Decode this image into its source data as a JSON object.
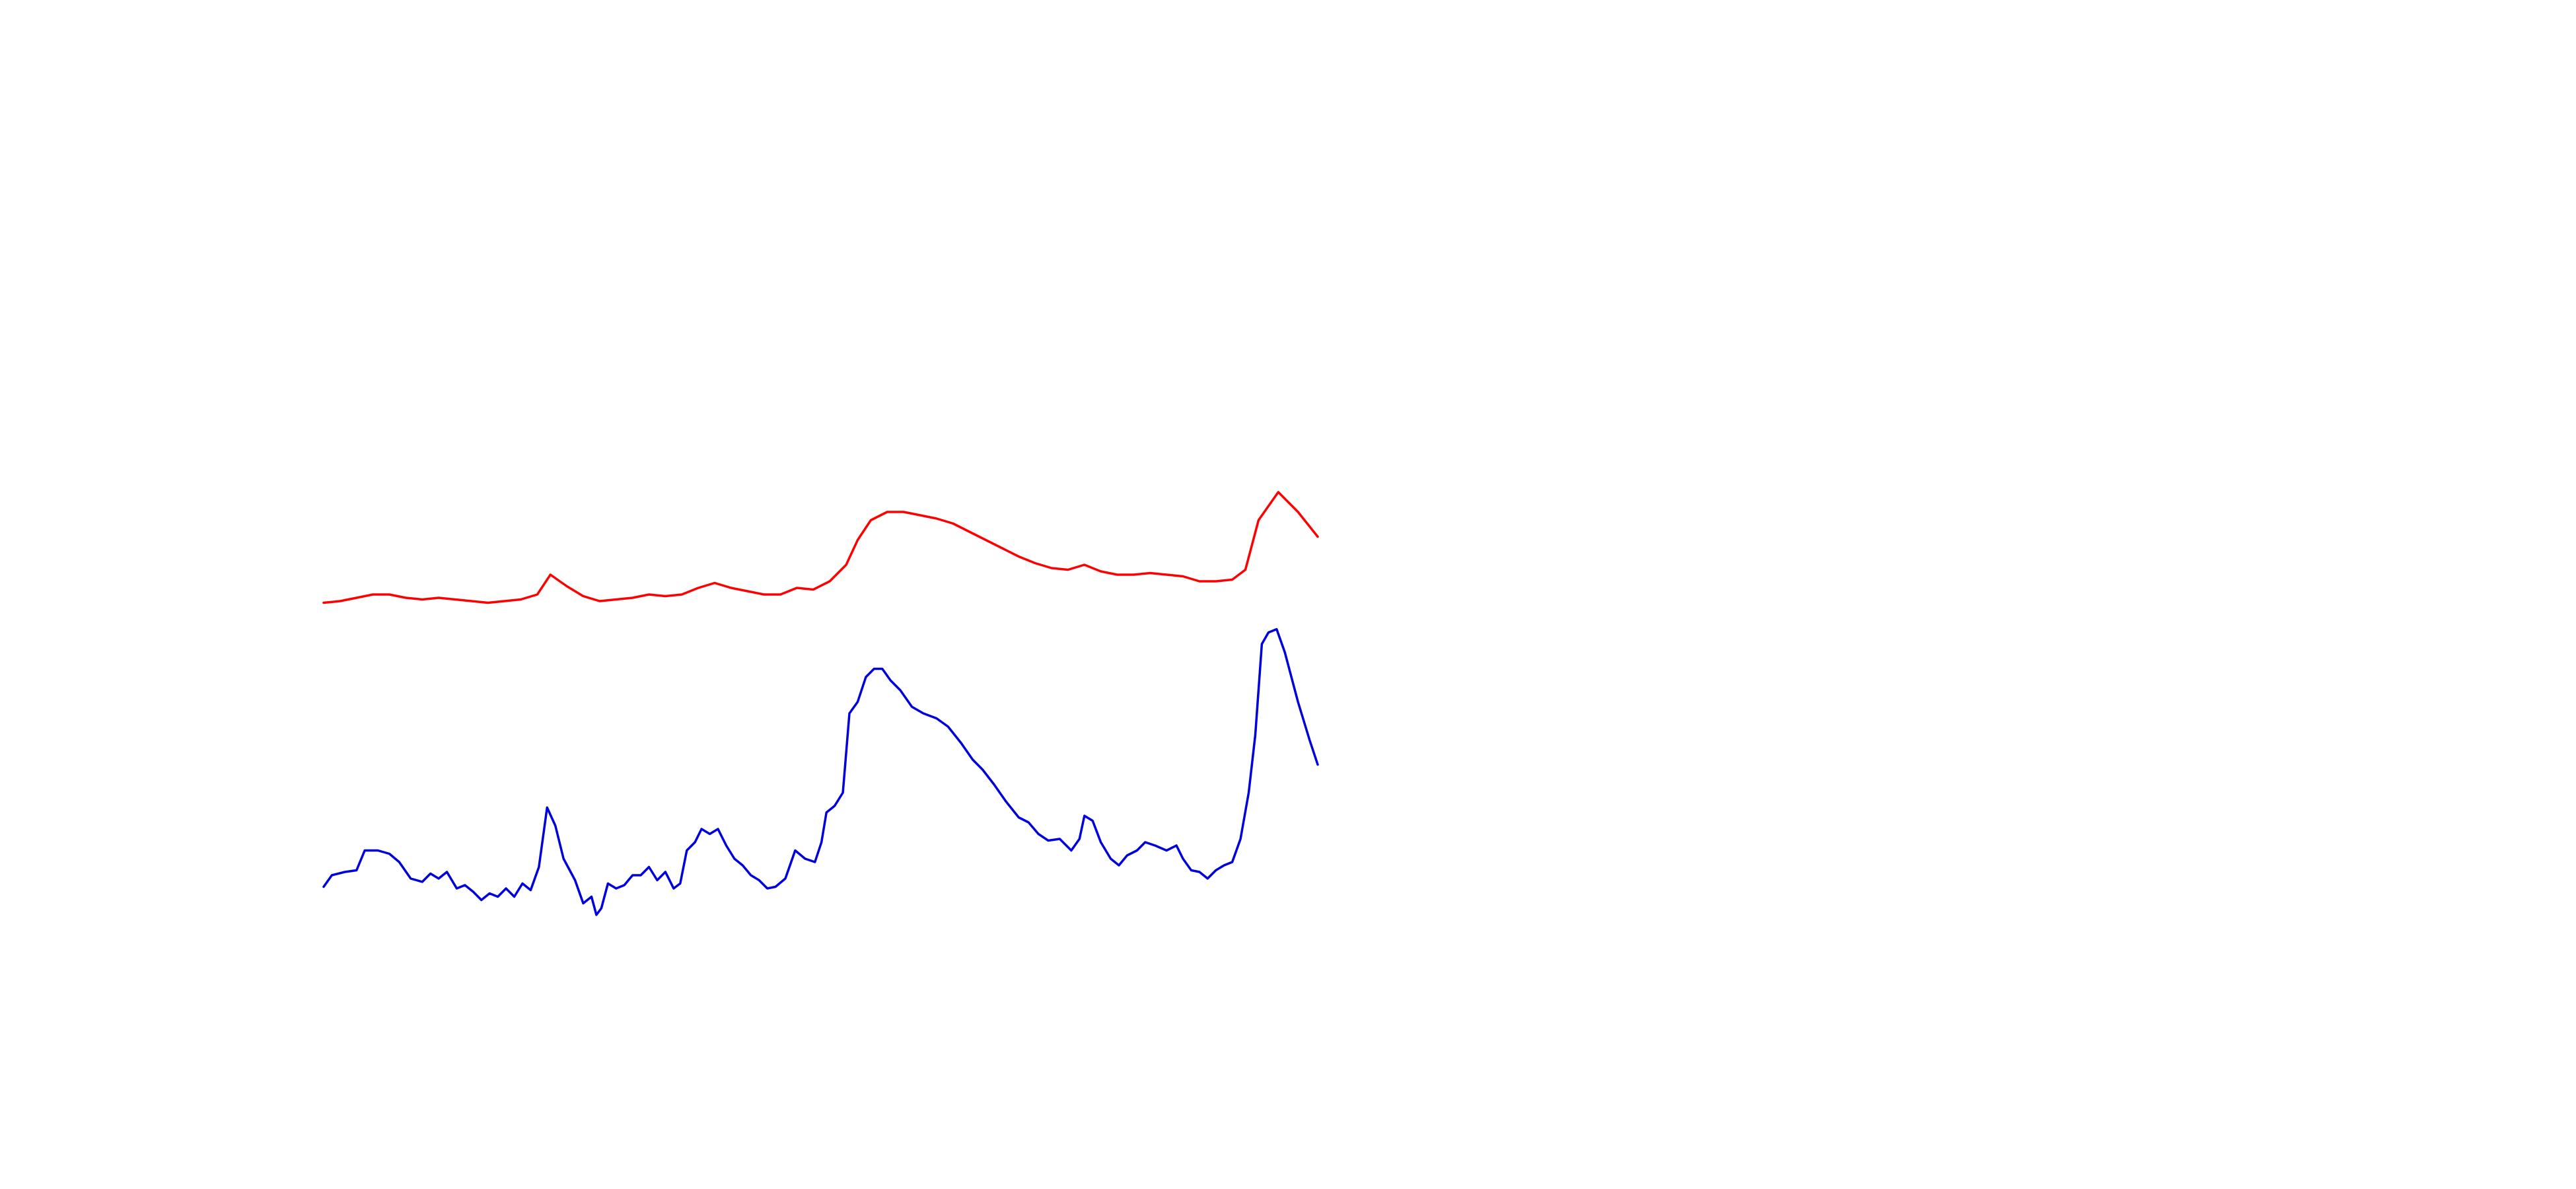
{
  "chart_data": {
    "type": "line",
    "xlim": [
      0,
      605
    ],
    "ylim": [
      0,
      270
    ],
    "series": [
      {
        "color": "#ff0000",
        "x": [
          0,
          10,
          20,
          30,
          40,
          50,
          60,
          70,
          80,
          90,
          100,
          110,
          120,
          130,
          138,
          148,
          158,
          168,
          178,
          188,
          198,
          208,
          218,
          228,
          238,
          248,
          258,
          268,
          278,
          288,
          298,
          308,
          318,
          325,
          333,
          343,
          353,
          363,
          373,
          383,
          393,
          403,
          413,
          423,
          433,
          443,
          453,
          463,
          473,
          483,
          493,
          503,
          513,
          523,
          533,
          543,
          553,
          561,
          569,
          581,
          593,
          605
        ],
        "values": [
          195,
          196,
          198,
          200,
          200,
          198,
          197,
          198,
          197,
          196,
          195,
          196,
          197,
          200,
          212,
          205,
          199,
          196,
          197,
          198,
          200,
          199,
          200,
          204,
          207,
          204,
          202,
          200,
          200,
          204,
          203,
          208,
          218,
          233,
          245,
          250,
          250,
          248,
          246,
          243,
          238,
          233,
          228,
          223,
          219,
          216,
          215,
          218,
          214,
          212,
          212,
          213,
          212,
          211,
          208,
          208,
          209,
          215,
          245,
          262,
          250,
          235
        ]
      },
      {
        "color": "#0000dd",
        "x": [
          0,
          5,
          13,
          20,
          25,
          33,
          40,
          46,
          53,
          60,
          65,
          70,
          75,
          81,
          86,
          91,
          96,
          101,
          106,
          111,
          116,
          121,
          126,
          131,
          136,
          141,
          146,
          153,
          158,
          163,
          166,
          169,
          173,
          178,
          183,
          188,
          193,
          198,
          203,
          208,
          213,
          217,
          221,
          226,
          230,
          235,
          240,
          245,
          250,
          255,
          260,
          265,
          270,
          275,
          281,
          287,
          293,
          299,
          303,
          306,
          311,
          316,
          320,
          325,
          330,
          335,
          340,
          345,
          351,
          358,
          365,
          373,
          380,
          388,
          395,
          401,
          408,
          415,
          423,
          429,
          435,
          441,
          448,
          455,
          460,
          463,
          468,
          473,
          479,
          484,
          489,
          495,
          500,
          506,
          513,
          519,
          523,
          528,
          533,
          538,
          543,
          548,
          553,
          558,
          563,
          567,
          571,
          575,
          580,
          585,
          593,
          600,
          605
        ],
        "values": [
          23,
          30,
          32,
          33,
          45,
          45,
          43,
          38,
          28,
          26,
          31,
          28,
          32,
          22,
          24,
          20,
          15,
          19,
          17,
          22,
          17,
          25,
          21,
          35,
          71,
          60,
          40,
          27,
          13,
          17,
          6,
          10,
          25,
          22,
          24,
          30,
          30,
          35,
          27,
          32,
          22,
          25,
          45,
          50,
          58,
          55,
          58,
          48,
          40,
          36,
          30,
          27,
          22,
          23,
          28,
          45,
          40,
          38,
          50,
          68,
          72,
          80,
          128,
          135,
          150,
          155,
          155,
          148,
          142,
          132,
          128,
          125,
          120,
          110,
          100,
          94,
          85,
          75,
          65,
          62,
          55,
          51,
          52,
          45,
          52,
          66,
          63,
          50,
          40,
          36,
          42,
          45,
          50,
          48,
          45,
          48,
          40,
          33,
          32,
          28,
          33,
          36,
          38,
          52,
          80,
          115,
          170,
          177,
          179,
          165,
          135,
          112,
          97
        ]
      }
    ]
  }
}
